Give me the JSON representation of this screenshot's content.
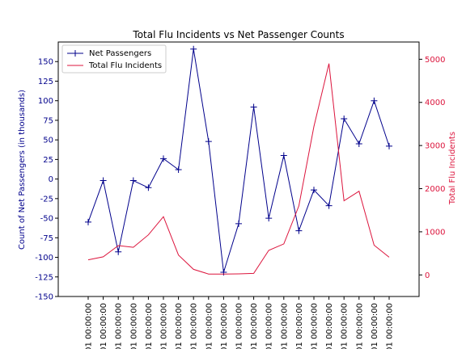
{
  "chart_data": {
    "type": "line",
    "title": "Total Flu Incidents vs Net Passenger Counts",
    "x_tick_label": "01 00:00:00",
    "left_axis": {
      "label": "Count of Net Passengers (in thousands)",
      "range": [
        -150,
        175
      ],
      "ticks": [
        -150,
        -125,
        -100,
        -75,
        -50,
        -25,
        0,
        25,
        50,
        75,
        100,
        125,
        150
      ],
      "color": "#00008b"
    },
    "right_axis": {
      "label": "Total Flu Incidents",
      "range": [
        -500,
        5400
      ],
      "ticks": [
        0,
        1000,
        2000,
        3000,
        4000,
        5000
      ],
      "color": "#dc143c"
    },
    "series": [
      {
        "name": "Net Passengers",
        "axis": "left",
        "color": "#00008b",
        "marker": "plus",
        "values": [
          -55,
          -2,
          -93,
          -2,
          -11,
          26,
          12,
          166,
          48,
          -119,
          -57,
          92,
          -50,
          30,
          -66,
          -14,
          -34,
          77,
          45,
          100,
          42
        ]
      },
      {
        "name": "Total Flu Incidents",
        "axis": "right",
        "color": "#dc143c",
        "marker": "none",
        "values": [
          350,
          420,
          680,
          640,
          930,
          1350,
          460,
          130,
          20,
          20,
          25,
          35,
          570,
          720,
          1600,
          3440,
          4900,
          1720,
          1940,
          690,
          410
        ]
      }
    ],
    "legend": {
      "placement": "top-left"
    },
    "grid": false
  }
}
